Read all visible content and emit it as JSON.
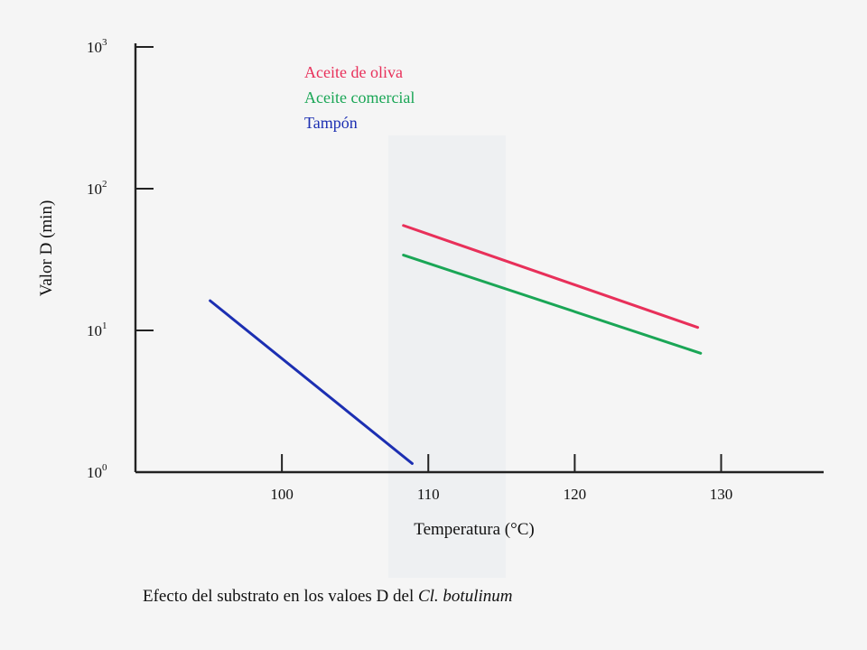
{
  "chart_data": {
    "type": "line",
    "xlabel": "Temperatura (°C)",
    "ylabel": "Valor D (min)",
    "caption": {
      "text": "Efecto del substrato en los valoes D del ",
      "italic": "Cl. botulinum"
    },
    "xlim": [
      90,
      137
    ],
    "ylim": [
      1,
      1000
    ],
    "yscale": "log",
    "x_ticks": [
      "100",
      "110",
      "120",
      "130"
    ],
    "x_tick_values": [
      100,
      110,
      120,
      130
    ],
    "y_ticks": [
      {
        "value": 1,
        "base": "10",
        "exp": "0"
      },
      {
        "value": 10,
        "base": "10",
        "exp": "1"
      },
      {
        "value": 100,
        "base": "10",
        "exp": "2"
      },
      {
        "value": 1000,
        "base": "10",
        "exp": "3"
      }
    ],
    "grid": false,
    "legend_position": "top-left",
    "series": [
      {
        "name": "Aceite de oliva",
        "color": "#e8305a",
        "x": [
          108.3,
          128.4
        ],
        "y": [
          55,
          10.5
        ]
      },
      {
        "name": "Aceite comercial",
        "color": "#1aa656",
        "x": [
          108.3,
          128.6
        ],
        "y": [
          34,
          6.9
        ]
      },
      {
        "name": "Tampón",
        "color": "#1c2fb2",
        "x": [
          95.1,
          108.9
        ],
        "y": [
          16.2,
          1.15
        ]
      }
    ]
  }
}
